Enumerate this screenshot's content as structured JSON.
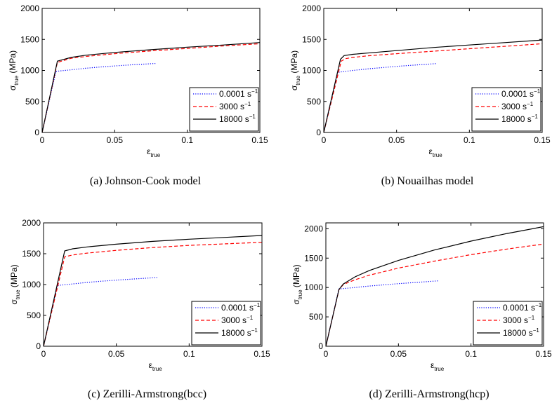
{
  "chart_data": [
    {
      "type": "line",
      "caption": "(a)  Johnson-Cook model",
      "xlabel": "ε",
      "xlabel_sub": "true",
      "ylabel": "σ",
      "ylabel_sub": "true",
      "ylabel_unit": " (MPa)",
      "xlim": [
        0,
        0.15
      ],
      "ylim": [
        0,
        2000
      ],
      "xticks": [
        0,
        0.05,
        0.1,
        0.15
      ],
      "xtick_labels": [
        "0",
        "0.05",
        "0.1",
        "0.15"
      ],
      "yticks": [
        0,
        500,
        1000,
        1500,
        2000
      ],
      "ytick_labels": [
        "0",
        "500",
        "1000",
        "1500",
        "2000"
      ],
      "legend_position": "lower-right",
      "series": [
        {
          "name": "0.0001 s",
          "name_sup": "−1",
          "color": "#0000ff",
          "dash": "dotted",
          "x": [
            0,
            0.0095,
            0.02,
            0.03,
            0.04,
            0.05,
            0.06,
            0.07,
            0.078
          ],
          "y": [
            0,
            985,
            1010,
            1035,
            1055,
            1072,
            1088,
            1102,
            1112
          ]
        },
        {
          "name": "3000 s",
          "name_sup": "−1",
          "color": "#ff0000",
          "dash": "dashed",
          "x": [
            0,
            0.0105,
            0.02,
            0.03,
            0.05,
            0.075,
            0.1,
            0.125,
            0.15
          ],
          "y": [
            0,
            1130,
            1195,
            1225,
            1270,
            1315,
            1355,
            1395,
            1430
          ]
        },
        {
          "name": "18000 s",
          "name_sup": "−1",
          "color": "#000000",
          "dash": "solid",
          "x": [
            0,
            0.0105,
            0.02,
            0.03,
            0.05,
            0.075,
            0.1,
            0.125,
            0.15
          ],
          "y": [
            0,
            1150,
            1210,
            1245,
            1290,
            1335,
            1375,
            1410,
            1450
          ]
        }
      ]
    },
    {
      "type": "line",
      "caption": "(b)  Nouailhas model",
      "xlabel": "ε",
      "xlabel_sub": "true",
      "ylabel": "σ",
      "ylabel_sub": "true",
      "ylabel_unit": " (MPa)",
      "xlim": [
        0,
        0.15
      ],
      "ylim": [
        0,
        2000
      ],
      "xticks": [
        0,
        0.05,
        0.1,
        0.15
      ],
      "xtick_labels": [
        "0",
        "0.05",
        "0.1",
        "0.15"
      ],
      "yticks": [
        0,
        500,
        1000,
        1500,
        2000
      ],
      "ytick_labels": [
        "0",
        "500",
        "1000",
        "1500",
        "2000"
      ],
      "legend_position": "lower-right",
      "series": [
        {
          "name": "0.0001 s",
          "name_sup": "−1",
          "color": "#0000ff",
          "dash": "dotted",
          "x": [
            0,
            0.0095,
            0.02,
            0.03,
            0.04,
            0.05,
            0.06,
            0.07,
            0.077
          ],
          "y": [
            0,
            970,
            1000,
            1025,
            1045,
            1065,
            1082,
            1098,
            1110
          ]
        },
        {
          "name": "3000 s",
          "name_sup": "−1",
          "color": "#ff0000",
          "dash": "dashed",
          "x": [
            0,
            0.012,
            0.015,
            0.02,
            0.03,
            0.05,
            0.075,
            0.1,
            0.125,
            0.15
          ],
          "y": [
            0,
            1150,
            1190,
            1210,
            1235,
            1270,
            1310,
            1350,
            1390,
            1430
          ]
        },
        {
          "name": "18000 s",
          "name_sup": "−1",
          "color": "#000000",
          "dash": "solid",
          "x": [
            0,
            0.0115,
            0.014,
            0.02,
            0.03,
            0.05,
            0.075,
            0.1,
            0.125,
            0.15
          ],
          "y": [
            0,
            1180,
            1240,
            1260,
            1280,
            1320,
            1370,
            1410,
            1450,
            1490
          ]
        }
      ]
    },
    {
      "type": "line",
      "caption": "(c)  Zerilli-Armstrong(bcc)",
      "xlabel": "ε",
      "xlabel_sub": "true",
      "ylabel": "σ",
      "ylabel_sub": "true",
      "ylabel_unit": " (MPa)",
      "xlim": [
        0,
        0.15
      ],
      "ylim": [
        0,
        2000
      ],
      "xticks": [
        0,
        0.05,
        0.1,
        0.15
      ],
      "xtick_labels": [
        "0",
        "0.05",
        "0.1",
        "0.15"
      ],
      "yticks": [
        0,
        500,
        1000,
        1500,
        2000
      ],
      "ytick_labels": [
        "0",
        "500",
        "1000",
        "1500",
        "2000"
      ],
      "legend_position": "lower-right",
      "series": [
        {
          "name": "0.0001 s",
          "name_sup": "−1",
          "color": "#0000ff",
          "dash": "dotted",
          "x": [
            0,
            0.0095,
            0.02,
            0.03,
            0.04,
            0.05,
            0.06,
            0.07,
            0.078
          ],
          "y": [
            0,
            985,
            1010,
            1035,
            1055,
            1072,
            1088,
            1102,
            1115
          ]
        },
        {
          "name": "3000 s",
          "name_sup": "−1",
          "color": "#ff0000",
          "dash": "dashed",
          "x": [
            0,
            0.0145,
            0.02,
            0.03,
            0.05,
            0.075,
            0.1,
            0.125,
            0.15
          ],
          "y": [
            0,
            1450,
            1480,
            1510,
            1555,
            1600,
            1635,
            1660,
            1685
          ]
        },
        {
          "name": "18000 s",
          "name_sup": "−1",
          "color": "#000000",
          "dash": "solid",
          "x": [
            0,
            0.0145,
            0.02,
            0.03,
            0.05,
            0.075,
            0.1,
            0.125,
            0.15
          ],
          "y": [
            0,
            1545,
            1580,
            1610,
            1655,
            1700,
            1735,
            1765,
            1795
          ]
        }
      ]
    },
    {
      "type": "line",
      "caption": "(d)  Zerilli-Armstrong(hcp)",
      "xlabel": "ε",
      "xlabel_sub": "true",
      "ylabel": "σ",
      "ylabel_sub": "true",
      "ylabel_unit": " (MPa)",
      "xlim": [
        0,
        0.15
      ],
      "ylim": [
        0,
        2100
      ],
      "xticks": [
        0,
        0.05,
        0.1,
        0.15
      ],
      "xtick_labels": [
        "0",
        "0.05",
        "0.1",
        "0.15"
      ],
      "yticks": [
        0,
        500,
        1000,
        1500,
        2000
      ],
      "ytick_labels": [
        "0",
        "500",
        "1000",
        "1500",
        "2000"
      ],
      "legend_position": "lower-right",
      "series": [
        {
          "name": "0.0001 s",
          "name_sup": "−1",
          "color": "#0000ff",
          "dash": "dotted",
          "x": [
            0,
            0.009,
            0.02,
            0.03,
            0.04,
            0.05,
            0.06,
            0.07,
            0.078
          ],
          "y": [
            0,
            975,
            1000,
            1025,
            1045,
            1065,
            1082,
            1100,
            1115
          ]
        },
        {
          "name": "3000 s",
          "name_sup": "−1",
          "color": "#ff0000",
          "dash": "dashed",
          "x": [
            0,
            0.009,
            0.012,
            0.02,
            0.03,
            0.05,
            0.075,
            0.1,
            0.125,
            0.15
          ],
          "y": [
            0,
            960,
            1050,
            1130,
            1210,
            1330,
            1450,
            1560,
            1655,
            1740
          ]
        },
        {
          "name": "18000 s",
          "name_sup": "−1",
          "color": "#000000",
          "dash": "solid",
          "x": [
            0,
            0.009,
            0.012,
            0.02,
            0.03,
            0.05,
            0.075,
            0.1,
            0.125,
            0.15
          ],
          "y": [
            0,
            965,
            1060,
            1180,
            1290,
            1460,
            1640,
            1790,
            1920,
            2035
          ]
        }
      ]
    }
  ]
}
